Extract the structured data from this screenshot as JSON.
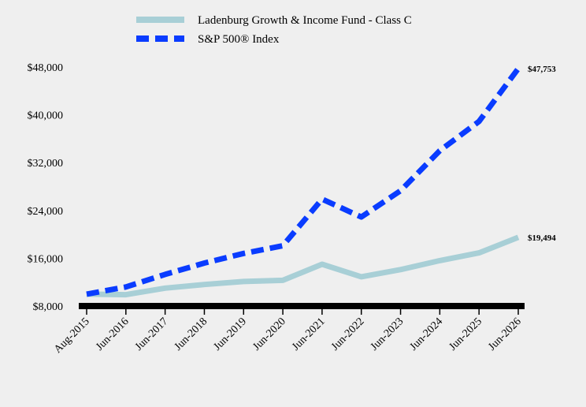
{
  "chart_data": {
    "type": "line",
    "x": [
      "Aug-2015",
      "Jun-2016",
      "Jun-2017",
      "Jun-2018",
      "Jun-2019",
      "Jun-2020",
      "Jun-2021",
      "Jun-2022",
      "Jun-2023",
      "Jun-2024",
      "Jun-2025",
      "Jun-2026"
    ],
    "series": [
      {
        "name": "Ladenburg Growth & Income Fund - Class C",
        "values": [
          10000,
          9900,
          11000,
          11600,
          12100,
          12300,
          15000,
          12900,
          14100,
          15600,
          16900,
          19494
        ],
        "color": "#a8cfd6",
        "style": "solid",
        "end_label": "$19,494"
      },
      {
        "name": "S&P 500® Index",
        "values": [
          10000,
          11200,
          13300,
          15200,
          16800,
          18100,
          25900,
          22900,
          27300,
          34000,
          38900,
          47753
        ],
        "color": "#0a3cff",
        "style": "dashed",
        "end_label": "$47,753"
      }
    ],
    "y_ticks": [
      8000,
      16000,
      24000,
      32000,
      40000,
      48000
    ],
    "y_tick_labels": [
      "$8,000",
      "$16,000",
      "$24,000",
      "$32,000",
      "$40,000",
      "$48,000"
    ],
    "ylim": [
      8000,
      48000
    ],
    "legend_position": "top",
    "grid": false
  }
}
